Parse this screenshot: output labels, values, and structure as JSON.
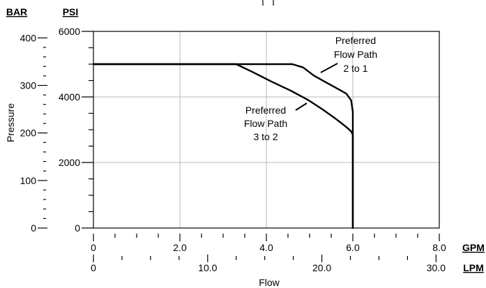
{
  "chart_data": {
    "type": "line",
    "title": "",
    "xlabel": "Flow",
    "ylabel": "Pressure",
    "x_unit_primary": "GPM",
    "x_unit_secondary": "LPM",
    "y_unit_primary": "PSI",
    "y_unit_secondary": "BAR",
    "xlim": [
      0,
      8.0
    ],
    "ylim": [
      0,
      6000
    ],
    "x_ticks_primary": [
      "0",
      "2.0",
      "4.0",
      "6.0",
      "8.0"
    ],
    "x_ticks_secondary": [
      "0",
      "10.0",
      "20.0",
      "30.0"
    ],
    "x_ticks_secondary_values": [
      0,
      10.0,
      20.0,
      30.0
    ],
    "y_ticks_primary": [
      "0",
      "2000",
      "4000",
      "6000"
    ],
    "y_ticks_secondary": [
      "0",
      "100",
      "200",
      "300",
      "400"
    ],
    "y_ticks_secondary_values": [
      0,
      100,
      200,
      300,
      400
    ],
    "grid": true,
    "legend": "none",
    "series": [
      {
        "x": [
          0,
          4.6,
          4.85,
          5.1,
          5.4,
          5.65,
          5.85,
          5.96,
          6.0,
          6.0
        ],
        "y": [
          5000,
          5000,
          4900,
          4650,
          4430,
          4250,
          4100,
          3900,
          3550,
          0
        ]
      },
      {
        "x": [
          0,
          3.3,
          3.65,
          4.1,
          4.55,
          4.95,
          5.3,
          5.62,
          5.85,
          5.96,
          6.0,
          6.0
        ],
        "y": [
          5000,
          5000,
          4780,
          4480,
          4200,
          3920,
          3620,
          3320,
          3080,
          2950,
          2850,
          0
        ]
      }
    ],
    "annotations": [
      {
        "lines": [
          "Preferred",
          "Flow Path",
          "2 to 1"
        ]
      },
      {
        "lines": [
          "Preferred",
          "Flow Path",
          "3 to 2"
        ]
      }
    ]
  }
}
